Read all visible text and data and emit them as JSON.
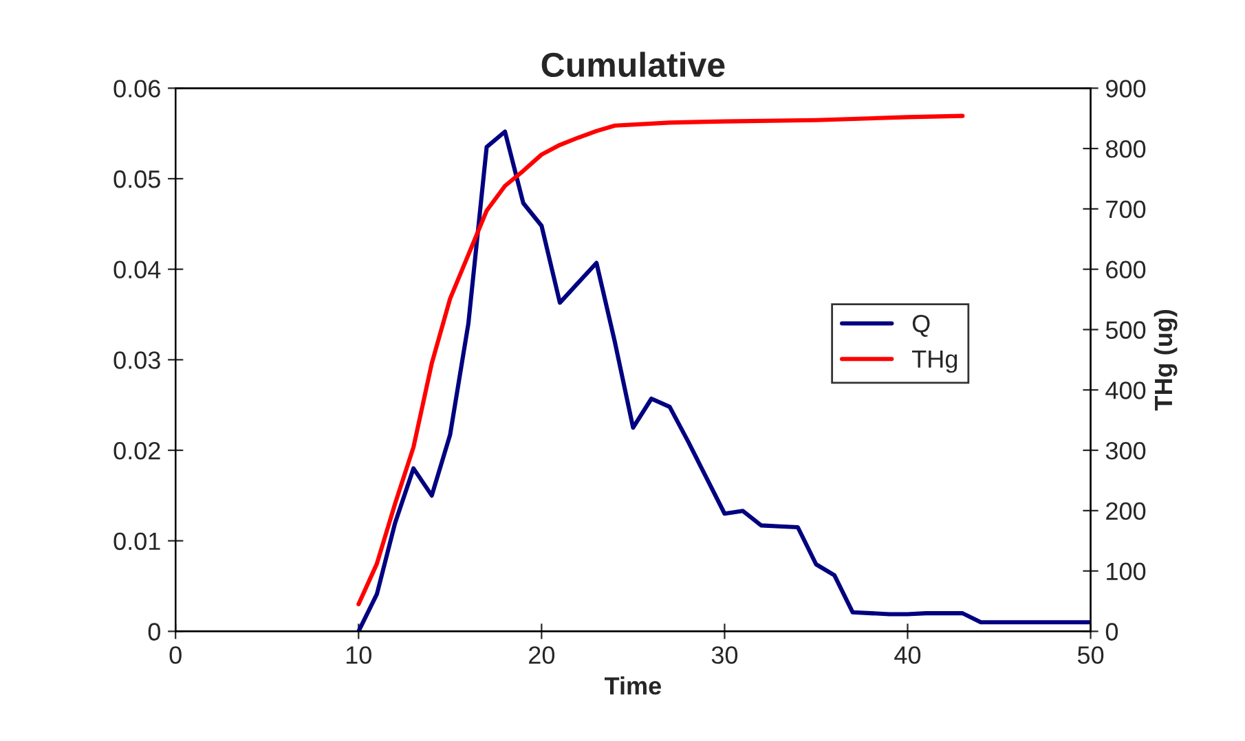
{
  "chart_data": {
    "type": "line",
    "title": "Cumulative",
    "xlabel": "Time",
    "y2label": "THg (ug)",
    "xlim": [
      0,
      50
    ],
    "xticks": [
      0,
      10,
      20,
      30,
      40,
      50
    ],
    "ylim": [
      0,
      0.06
    ],
    "yticks": [
      0,
      0.01,
      0.02,
      0.03,
      0.04,
      0.05,
      0.06
    ],
    "y2lim": [
      0,
      900
    ],
    "y2ticks": [
      0,
      100,
      200,
      300,
      400,
      500,
      600,
      700,
      800,
      900
    ],
    "grid": false,
    "legend": "right",
    "series": [
      {
        "name": "Q",
        "color": "#000080",
        "x": [
          10,
          11,
          12,
          13,
          14,
          15,
          16,
          17,
          18,
          19,
          20,
          21,
          22,
          23,
          24,
          25,
          26,
          27,
          28,
          29,
          30,
          31,
          32,
          33,
          34,
          35,
          36,
          37,
          38,
          39,
          40,
          41,
          42,
          43,
          44,
          45,
          46,
          47,
          48,
          49,
          50
        ],
        "values": [
          0,
          0.0041,
          0.012,
          0.018,
          0.015,
          0.0217,
          0.034,
          0.0535,
          0.0552,
          0.0473,
          0.0448,
          0.0363,
          0.0385,
          0.0407,
          0.032,
          0.0225,
          0.0257,
          0.0248,
          0.021,
          0.017,
          0.013,
          0.0133,
          0.0117,
          0.0116,
          0.0115,
          0.0074,
          0.0062,
          0.0021,
          0.002,
          0.0019,
          0.0019,
          0.002,
          0.002,
          0.002,
          0.001,
          0.001,
          0.001,
          0.001,
          0.001,
          0.001,
          0.001
        ]
      },
      {
        "name": "THg",
        "color": "#ff0000",
        "axis": "y2",
        "x": [
          10,
          11,
          12,
          13,
          14,
          15,
          16,
          17,
          18,
          19,
          20,
          21,
          22,
          23,
          24,
          27,
          30,
          35,
          40,
          43
        ],
        "values": [
          45,
          112,
          212,
          305,
          444,
          551,
          624,
          697,
          738,
          763,
          790,
          806,
          818,
          829,
          838,
          843,
          845,
          847,
          852,
          854
        ]
      }
    ]
  }
}
